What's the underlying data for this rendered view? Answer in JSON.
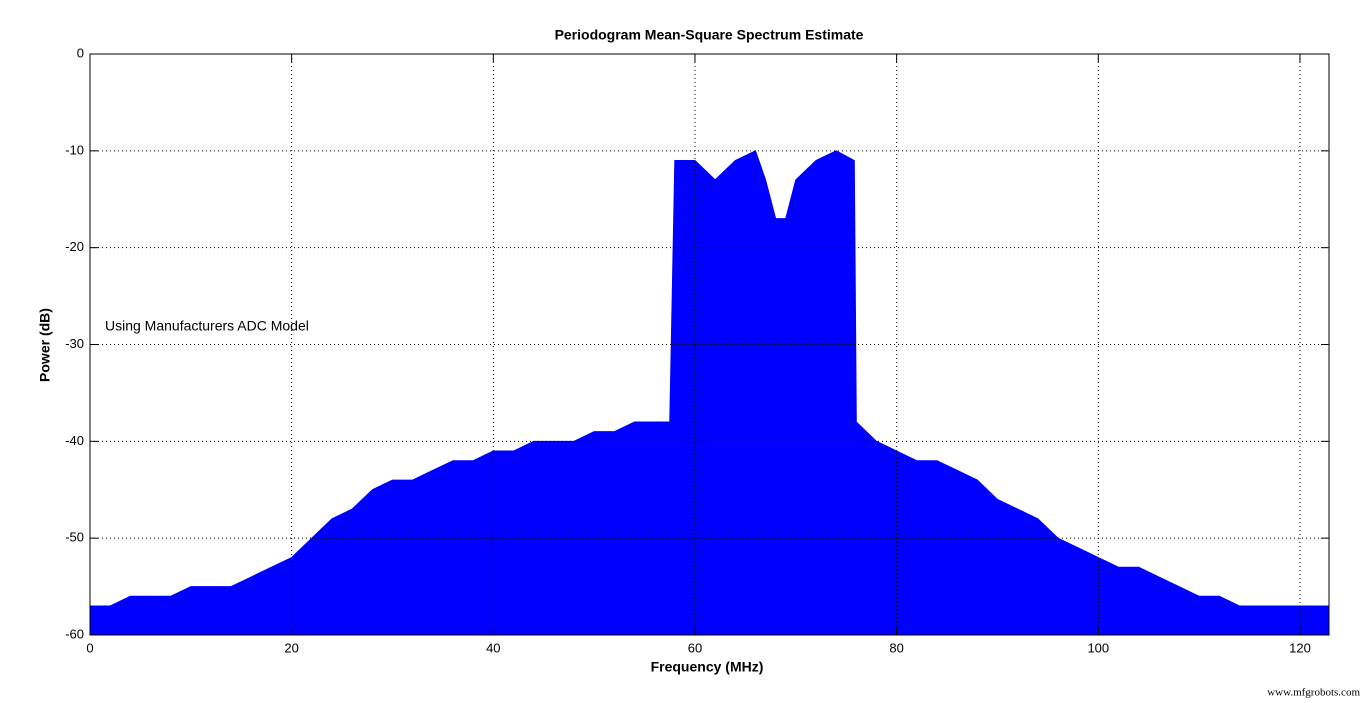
{
  "chart_data": {
    "type": "area",
    "title": "Periodogram Mean-Square Spectrum Estimate",
    "x_label": "Frequency (MHz)",
    "y_label": "Power (dB)",
    "annotation": "Using Manufacturers ADC Model",
    "watermark": "www.mfgrobots.com",
    "color": "#0000ff",
    "grid": true,
    "xlim": [
      0,
      122.88
    ],
    "ylim": [
      -60,
      0
    ],
    "xticks": [
      0,
      20,
      40,
      60,
      80,
      100,
      120
    ],
    "yticks": [
      -60,
      -50,
      -40,
      -30,
      -20,
      -10,
      0
    ],
    "x": [
      0,
      2,
      4,
      6,
      8,
      10,
      12,
      14,
      16,
      18,
      20,
      22,
      24,
      26,
      28,
      30,
      32,
      34,
      36,
      38,
      40,
      42,
      44,
      46,
      48,
      50,
      52,
      54,
      56,
      57.5,
      58,
      60,
      62,
      64,
      66,
      67,
      68,
      69,
      70,
      72,
      74,
      75.8,
      76,
      78,
      80,
      82,
      84,
      86,
      88,
      90,
      92,
      94,
      96,
      98,
      100,
      102,
      104,
      106,
      108,
      110,
      112,
      114,
      116,
      118,
      120,
      122.88
    ],
    "values": [
      -57,
      -57,
      -56,
      -56,
      -56,
      -55,
      -55,
      -55,
      -54,
      -53,
      -52,
      -50,
      -48,
      -47,
      -45,
      -44,
      -44,
      -43,
      -42,
      -42,
      -41,
      -41,
      -40,
      -40,
      -40,
      -39,
      -39,
      -38,
      -38,
      -38,
      -11,
      -11,
      -13,
      -11,
      -10,
      -13,
      -17,
      -17,
      -13,
      -11,
      -10,
      -11,
      -38,
      -40,
      -41,
      -42,
      -42,
      -43,
      -44,
      -46,
      -47,
      -48,
      -50,
      -51,
      -52,
      -53,
      -53,
      -54,
      -55,
      -56,
      -56,
      -57,
      -57,
      -57,
      -57,
      -57
    ]
  }
}
